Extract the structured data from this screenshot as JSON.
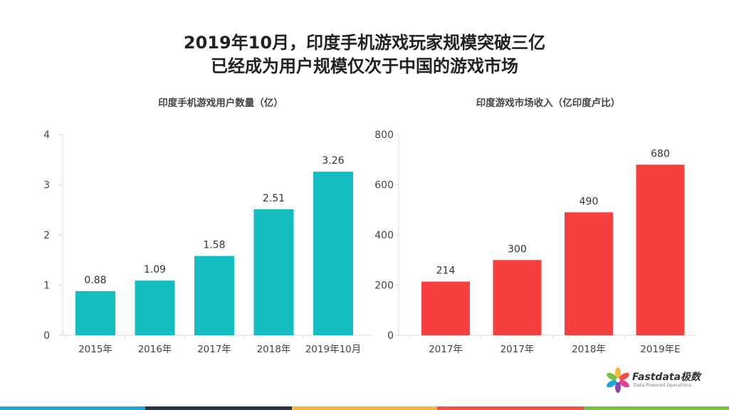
{
  "headline": {
    "line1": "2019年10月，印度手机游戏玩家规模突破三亿",
    "line2": "已经成为用户规模仅次于中国的游戏市场"
  },
  "chart_data": [
    {
      "type": "bar",
      "title": "印度手机游戏用户数量（亿）",
      "categories": [
        "2015年",
        "2016年",
        "2017年",
        "2018年",
        "2019年10月"
      ],
      "values": [
        0.88,
        1.09,
        1.58,
        2.51,
        3.26
      ],
      "value_labels": [
        "0.88",
        "1.09",
        "1.58",
        "2.51",
        "3.26"
      ],
      "ylim": [
        0,
        4
      ],
      "yticks": [
        "0",
        "1",
        "2",
        "3",
        "4"
      ],
      "ytick_values": [
        0,
        1,
        2,
        3,
        4
      ],
      "color": "#14BDC0",
      "grid": false
    },
    {
      "type": "bar",
      "title": "印度游戏市场收入（亿印度卢比）",
      "categories": [
        "2017年",
        "2017年",
        "2018年",
        "2019年E"
      ],
      "values": [
        214,
        300,
        490,
        680
      ],
      "value_labels": [
        "214",
        "300",
        "490",
        "680"
      ],
      "ylim": [
        0,
        800
      ],
      "yticks": [
        "0",
        "200",
        "400",
        "600",
        "800"
      ],
      "ytick_values": [
        0,
        200,
        400,
        600,
        800
      ],
      "color": "#F5403F",
      "grid": false
    }
  ],
  "logo": {
    "name": "Fastdata极数",
    "tagline": "Data-Powered Operations"
  },
  "bottom_strip_colors": [
    "#1FA6D9",
    "#2C3440",
    "#F4B63F",
    "#F04F45",
    "#7AC143"
  ]
}
